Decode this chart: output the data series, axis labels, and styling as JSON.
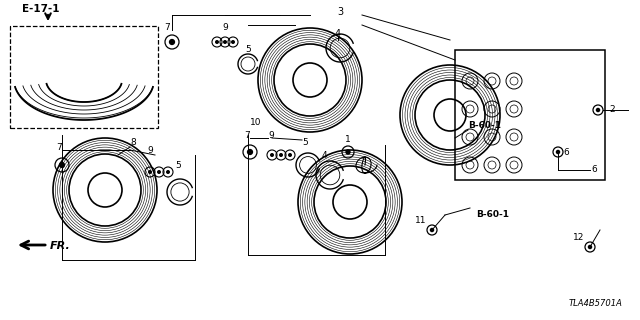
{
  "bg_color": "#ffffff",
  "diagram_code": "TLA4B5701A",
  "ref_label": "E-17-1",
  "fr_label": "FR."
}
